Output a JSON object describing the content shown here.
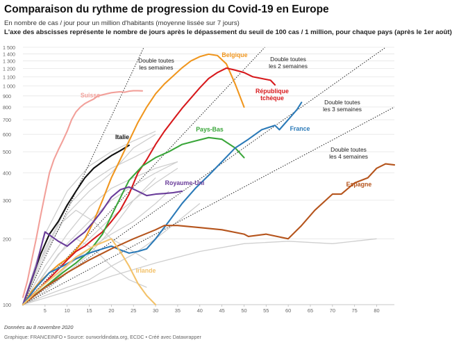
{
  "header": {
    "title": "Comparaison du rythme de progression du Covid-19 en Europe",
    "subtitle": "En nombre de cas / jour pour un million d'habitants (moyenne lissée sur 7 jours)",
    "description": "L'axe des abscisses représente le nombre de jours après le dépassement du seuil de 100 cas / 1 million, pour chaque pays (après le 1er août)"
  },
  "footer": {
    "note": "Données au 8 novembre 2020",
    "credit": "Graphique: FRANCEINFO • Source: ourworldindata.org, ECDC • Créé avec Datawrapper"
  },
  "chart_data": {
    "type": "line",
    "title": "Comparaison du rythme de progression du Covid-19 en Europe",
    "xlabel": "",
    "ylabel": "",
    "y_scale": "log",
    "xlim": [
      0,
      84
    ],
    "ylim": [
      100,
      1500
    ],
    "x_ticks": [
      5,
      10,
      15,
      20,
      25,
      30,
      35,
      40,
      45,
      50,
      55,
      60,
      65,
      70,
      75,
      80
    ],
    "x_tick_labels": [
      "5",
      "10",
      "15",
      "20",
      "25",
      "30",
      "35",
      "40",
      "45",
      "50",
      "55",
      "60",
      "65",
      "70",
      "75",
      "80"
    ],
    "y_ticks": [
      100,
      200,
      300,
      400,
      500,
      600,
      700,
      800,
      900,
      1000,
      1100,
      1200,
      1300,
      1400,
      1500
    ],
    "y_tick_labels": [
      "100",
      "200",
      "300",
      "400",
      "500",
      "600",
      "700",
      "800",
      "900",
      "1 000",
      "1 100",
      "1 200",
      "1 300",
      "1 400",
      "1 500"
    ],
    "grid": true,
    "series": [
      {
        "name": "Suisse",
        "color": "#f2a09a",
        "x": [
          0,
          1,
          2,
          3,
          4,
          5,
          6,
          7,
          8,
          9,
          10,
          11,
          12,
          13,
          14,
          15,
          16,
          17,
          18,
          19,
          20,
          21,
          22,
          23,
          24,
          25,
          26,
          27
        ],
        "y": [
          108,
          128,
          160,
          200,
          255,
          320,
          400,
          460,
          510,
          560,
          620,
          700,
          760,
          800,
          830,
          850,
          870,
          900,
          910,
          920,
          930,
          935,
          940,
          935,
          945,
          950,
          950,
          948
        ]
      },
      {
        "name": "Italie",
        "color": "#111111",
        "x": [
          0,
          2,
          4,
          6,
          8,
          10,
          12,
          14,
          16,
          18,
          20,
          22,
          24
        ],
        "y": [
          100,
          130,
          170,
          210,
          240,
          285,
          330,
          380,
          420,
          450,
          480,
          505,
          535
        ]
      },
      {
        "name": "Belgique",
        "color": "#f0961e",
        "x": [
          0,
          2,
          4,
          6,
          8,
          10,
          12,
          14,
          16,
          18,
          20,
          22,
          24,
          26,
          28,
          30,
          32,
          34,
          36,
          38,
          40,
          42,
          44,
          46,
          48,
          50
        ],
        "y": [
          100,
          115,
          128,
          140,
          152,
          162,
          178,
          200,
          240,
          300,
          380,
          460,
          560,
          680,
          800,
          920,
          1020,
          1110,
          1210,
          1300,
          1360,
          1395,
          1375,
          1260,
          1020,
          800
        ]
      },
      {
        "name": "République tchèque",
        "color": "#d7191c",
        "x": [
          0,
          2,
          4,
          6,
          8,
          10,
          12,
          14,
          16,
          18,
          20,
          22,
          24,
          26,
          28,
          30,
          32,
          34,
          36,
          38,
          40,
          42,
          44,
          46,
          48,
          50,
          52,
          54,
          56,
          57
        ],
        "y": [
          100,
          110,
          120,
          132,
          145,
          160,
          175,
          185,
          200,
          215,
          240,
          270,
          320,
          400,
          460,
          540,
          620,
          700,
          790,
          880,
          980,
          1080,
          1150,
          1205,
          1180,
          1150,
          1100,
          1080,
          1060,
          1010
        ]
      },
      {
        "name": "Pays-Bas",
        "color": "#3aa63a",
        "x": [
          0,
          3,
          6,
          9,
          12,
          15,
          18,
          21,
          24,
          27,
          30,
          33,
          36,
          39,
          42,
          45,
          48,
          50
        ],
        "y": [
          100,
          112,
          125,
          140,
          155,
          175,
          210,
          280,
          370,
          430,
          470,
          500,
          540,
          560,
          580,
          570,
          520,
          470
        ]
      },
      {
        "name": "Royaume-Uni",
        "color": "#6a3d9a",
        "x": [
          0,
          3,
          5,
          8,
          10,
          12,
          14,
          16,
          18,
          20,
          22,
          24,
          26,
          28,
          30,
          32,
          34,
          36
        ],
        "y": [
          100,
          150,
          215,
          195,
          185,
          200,
          215,
          240,
          270,
          310,
          335,
          345,
          330,
          315,
          320,
          322,
          325,
          330
        ]
      },
      {
        "name": "France",
        "color": "#2b7ab8",
        "x": [
          0,
          3,
          6,
          9,
          12,
          15,
          18,
          20,
          22,
          24,
          26,
          28,
          30,
          33,
          36,
          39,
          42,
          45,
          48,
          51,
          54,
          57,
          58,
          60,
          62,
          63
        ],
        "y": [
          100,
          120,
          140,
          150,
          162,
          172,
          180,
          185,
          178,
          172,
          175,
          180,
          200,
          240,
          290,
          340,
          390,
          450,
          520,
          570,
          630,
          660,
          630,
          700,
          780,
          840
        ]
      },
      {
        "name": "Espagne",
        "color": "#b5541c",
        "x": [
          0,
          5,
          10,
          15,
          20,
          25,
          30,
          32,
          35,
          40,
          45,
          50,
          51,
          55,
          60,
          63,
          66,
          70,
          72,
          75,
          78,
          80,
          82,
          84
        ],
        "y": [
          100,
          120,
          140,
          160,
          180,
          200,
          220,
          230,
          230,
          225,
          220,
          210,
          205,
          210,
          200,
          230,
          270,
          320,
          320,
          360,
          380,
          420,
          440,
          435
        ]
      },
      {
        "name": "Irlande",
        "color": "#f3c26a",
        "x": [
          0,
          4,
          8,
          12,
          16,
          20,
          22,
          24,
          26,
          28,
          30
        ],
        "y": [
          100,
          120,
          140,
          165,
          185,
          200,
          175,
          150,
          125,
          110,
          100
        ]
      }
    ],
    "background_series": [
      {
        "x": [
          0,
          5,
          10,
          15,
          20,
          25,
          30
        ],
        "y": [
          100,
          170,
          260,
          330,
          400,
          520,
          600
        ]
      },
      {
        "x": [
          0,
          5,
          10,
          15,
          20,
          25,
          30
        ],
        "y": [
          100,
          210,
          330,
          430,
          500,
          560,
          620
        ]
      },
      {
        "x": [
          0,
          5,
          10,
          15,
          20,
          25,
          30,
          35
        ],
        "y": [
          100,
          150,
          210,
          280,
          340,
          380,
          420,
          450
        ]
      },
      {
        "x": [
          0,
          5,
          10,
          15,
          20,
          25,
          30,
          35
        ],
        "y": [
          100,
          140,
          190,
          240,
          300,
          350,
          400,
          450
        ]
      },
      {
        "x": [
          0,
          5,
          10,
          15,
          20,
          25,
          30,
          35
        ],
        "y": [
          100,
          125,
          160,
          200,
          250,
          300,
          360,
          420
        ]
      },
      {
        "x": [
          0,
          4,
          8,
          12,
          16,
          20,
          24,
          28
        ],
        "y": [
          100,
          160,
          230,
          270,
          240,
          200,
          180,
          160
        ]
      },
      {
        "x": [
          0,
          5,
          10,
          15,
          20,
          25,
          30
        ],
        "y": [
          100,
          115,
          140,
          170,
          220,
          300,
          380
        ]
      },
      {
        "x": [
          0,
          5,
          10,
          15,
          20,
          25,
          30,
          35,
          40
        ],
        "y": [
          100,
          110,
          120,
          130,
          150,
          170,
          200,
          240,
          290
        ]
      },
      {
        "x": [
          0,
          4,
          8,
          12,
          16,
          20,
          24,
          28
        ],
        "y": [
          100,
          130,
          170,
          200,
          180,
          150,
          130,
          120
        ]
      },
      {
        "x": [
          0,
          10,
          20,
          30,
          40,
          50,
          60,
          70,
          80
        ],
        "y": [
          100,
          115,
          135,
          155,
          175,
          190,
          195,
          190,
          200
        ]
      },
      {
        "x": [
          0,
          5,
          10,
          15,
          20,
          25,
          30
        ],
        "y": [
          100,
          180,
          280,
          360,
          420,
          470,
          530
        ]
      },
      {
        "x": [
          0,
          5,
          10,
          15,
          20,
          25,
          30,
          33
        ],
        "y": [
          100,
          120,
          150,
          180,
          210,
          240,
          290,
          330
        ]
      }
    ],
    "reference_lines": [
      {
        "label_lines": [
          "Double toutes",
          "les semaines"
        ],
        "doubling_days": 7
      },
      {
        "label_lines": [
          "Double toutes",
          "les 2 semaines"
        ],
        "doubling_days": 14
      },
      {
        "label_lines": [
          "Double toutes",
          "les 3 semaines"
        ],
        "doubling_days": 21
      },
      {
        "label_lines": [
          "Double toutes",
          "les 4 semaines"
        ],
        "doubling_days": 28
      }
    ]
  }
}
